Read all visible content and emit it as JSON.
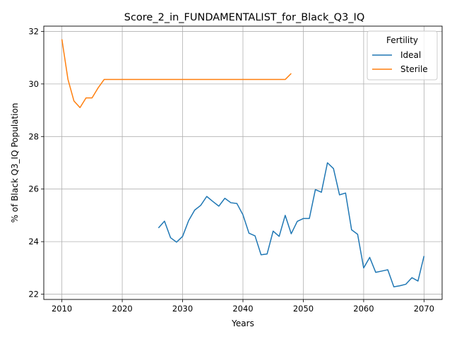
{
  "chart_data": {
    "type": "line",
    "title": "Score_2_in_FUNDAMENTALIST_for_Black_Q3_IQ",
    "xlabel": "Years",
    "ylabel": "% of Black Q3_IQ Population",
    "xlim": [
      2007,
      2073
    ],
    "ylim": [
      21.8,
      32.2
    ],
    "xticks": [
      2010,
      2020,
      2030,
      2040,
      2050,
      2060,
      2070
    ],
    "yticks": [
      22,
      24,
      26,
      28,
      30,
      32
    ],
    "grid": true,
    "legend": {
      "title": "Fertility",
      "placement": "top-right"
    },
    "series": [
      {
        "name": "Ideal",
        "color": "#1f77b4",
        "x": [
          2026,
          2027,
          2028,
          2029,
          2030,
          2031,
          2032,
          2033,
          2034,
          2035,
          2036,
          2037,
          2038,
          2039,
          2040,
          2041,
          2042,
          2043,
          2044,
          2045,
          2046,
          2047,
          2048,
          2049,
          2050,
          2051,
          2052,
          2053,
          2054,
          2055,
          2056,
          2057,
          2058,
          2059,
          2060,
          2061,
          2062,
          2063,
          2064,
          2065,
          2066,
          2067,
          2068,
          2069,
          2070
        ],
        "y": [
          24.52,
          24.78,
          24.15,
          23.98,
          24.2,
          24.8,
          25.2,
          25.38,
          25.72,
          25.53,
          25.35,
          25.65,
          25.48,
          25.45,
          25.02,
          24.32,
          24.22,
          23.5,
          23.53,
          24.4,
          24.2,
          25.0,
          24.3,
          24.77,
          24.88,
          24.88,
          25.98,
          25.88,
          27.0,
          26.78,
          25.78,
          25.85,
          24.45,
          24.28,
          23.0,
          23.4,
          22.83,
          22.88,
          22.93,
          22.28,
          22.32,
          22.38,
          22.63,
          22.5,
          23.45
        ]
      },
      {
        "name": "Sterile",
        "color": "#ff7f0e",
        "x": [
          2010,
          2011,
          2012,
          2013,
          2014,
          2015,
          2016,
          2017,
          2018,
          2019,
          2020,
          2021,
          2022,
          2023,
          2024,
          2025,
          2026,
          2027,
          2028,
          2029,
          2030,
          2031,
          2032,
          2033,
          2034,
          2035,
          2036,
          2037,
          2038,
          2039,
          2040,
          2041,
          2042,
          2043,
          2044,
          2045,
          2046,
          2047,
          2048
        ],
        "y": [
          31.7,
          30.18,
          29.35,
          29.1,
          29.47,
          29.47,
          29.85,
          30.17,
          30.17,
          30.17,
          30.17,
          30.17,
          30.17,
          30.17,
          30.17,
          30.17,
          30.17,
          30.17,
          30.17,
          30.17,
          30.17,
          30.17,
          30.17,
          30.17,
          30.17,
          30.17,
          30.17,
          30.17,
          30.17,
          30.17,
          30.17,
          30.17,
          30.17,
          30.17,
          30.17,
          30.17,
          30.17,
          30.17,
          30.4
        ]
      }
    ]
  }
}
